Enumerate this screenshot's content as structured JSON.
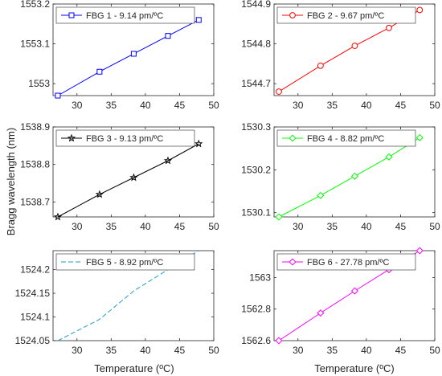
{
  "figure": {
    "ylabel": "Bragg wavelength (nm)",
    "xlabel": "Temperature (ºC)"
  },
  "chart_data": [
    {
      "type": "line",
      "legend_label": "FBG 1 - 9.14 pm/ºC",
      "legend_position": "top-left",
      "color": "#0000ff",
      "marker": "square",
      "dashed": false,
      "x": [
        27.2,
        33.3,
        38.3,
        43.3,
        47.8
      ],
      "y": [
        1552.97,
        1553.03,
        1553.075,
        1553.12,
        1553.16
      ],
      "xlim": [
        26.5,
        50
      ],
      "ylim": [
        1552.97,
        1553.2
      ],
      "xticks": [
        30,
        35,
        40,
        45,
        50
      ],
      "yticks": [
        1553,
        1553.1,
        1553.2
      ],
      "ytick_labels": [
        "1553",
        "1553.1",
        "1553.2"
      ],
      "xlabel": "",
      "ylabel": ""
    },
    {
      "type": "line",
      "legend_label": "FBG 2 - 9.67 pm/ºC",
      "legend_position": "top-left",
      "color": "#ff0000",
      "marker": "circle",
      "dashed": false,
      "x": [
        27.2,
        33.3,
        38.3,
        43.3,
        47.8
      ],
      "y": [
        1544.68,
        1544.745,
        1544.795,
        1544.84,
        1544.885
      ],
      "xlim": [
        26.5,
        50
      ],
      "ylim": [
        1544.67,
        1544.9
      ],
      "xticks": [
        30,
        35,
        40,
        45,
        50
      ],
      "yticks": [
        1544.7,
        1544.8,
        1544.9
      ],
      "ytick_labels": [
        "1544.7",
        "1544.8",
        "1544.9"
      ],
      "xlabel": "",
      "ylabel": ""
    },
    {
      "type": "line",
      "legend_label": "FBG 3 - 9.13 pm/ºC",
      "legend_position": "top-left",
      "color": "#000000",
      "marker": "star",
      "dashed": false,
      "x": [
        27.2,
        33.3,
        38.3,
        43.3,
        47.8
      ],
      "y": [
        1538.66,
        1538.72,
        1538.765,
        1538.81,
        1538.855
      ],
      "xlim": [
        26.5,
        50
      ],
      "ylim": [
        1538.66,
        1538.9
      ],
      "xticks": [
        30,
        35,
        40,
        45,
        50
      ],
      "yticks": [
        1538.7,
        1538.8,
        1538.9
      ],
      "ytick_labels": [
        "1538.7",
        "1538.8",
        "1538.9"
      ],
      "xlabel": "",
      "ylabel": ""
    },
    {
      "type": "line",
      "legend_label": "FBG 4 - 8.82 pm/ºC",
      "legend_position": "top-left",
      "color": "#00ff00",
      "marker": "diamond",
      "dashed": false,
      "x": [
        27.2,
        33.3,
        38.3,
        43.3,
        47.8
      ],
      "y": [
        1530.09,
        1530.14,
        1530.185,
        1530.23,
        1530.275
      ],
      "xlim": [
        26.5,
        50
      ],
      "ylim": [
        1530.09,
        1530.3
      ],
      "xticks": [
        30,
        35,
        40,
        45,
        50
      ],
      "yticks": [
        1530.1,
        1530.2,
        1530.3
      ],
      "ytick_labels": [
        "1530.1",
        "1530.2",
        "1530.3"
      ],
      "xlabel": "",
      "ylabel": ""
    },
    {
      "type": "line",
      "legend_label": "FBG 5 - 8.92 pm/ºC",
      "legend_position": "top-left",
      "color": "#1f9bcf",
      "marker": "none",
      "dashed": true,
      "x": [
        27.2,
        33.3,
        38.3,
        43.3,
        47.8
      ],
      "y": [
        1524.05,
        1524.095,
        1524.155,
        1524.2,
        1524.24
      ],
      "xlim": [
        26.5,
        50
      ],
      "ylim": [
        1524.05,
        1524.24
      ],
      "xticks": [
        30,
        35,
        40,
        45,
        50
      ],
      "yticks": [
        1524.05,
        1524.1,
        1524.15,
        1524.2
      ],
      "ytick_labels": [
        "1524.05",
        "1524.1",
        "1524.15",
        "1524.2"
      ],
      "xlabel": "",
      "ylabel": ""
    },
    {
      "type": "line",
      "legend_label": "FBG 6 - 27.78 pm/ºC",
      "legend_position": "top-left",
      "color": "#ff00ff",
      "marker": "diamond",
      "dashed": false,
      "x": [
        27.2,
        33.3,
        38.3,
        43.3,
        47.8
      ],
      "y": [
        1562.6,
        1562.775,
        1562.915,
        1563.05,
        1563.17
      ],
      "xlim": [
        26.5,
        50
      ],
      "ylim": [
        1562.6,
        1563.17
      ],
      "xticks": [
        30,
        35,
        40,
        45,
        50
      ],
      "yticks": [
        1562.6,
        1562.8,
        1563
      ],
      "ytick_labels": [
        "1562.6",
        "1562.8",
        "1563"
      ],
      "xlabel": "",
      "ylabel": ""
    }
  ]
}
